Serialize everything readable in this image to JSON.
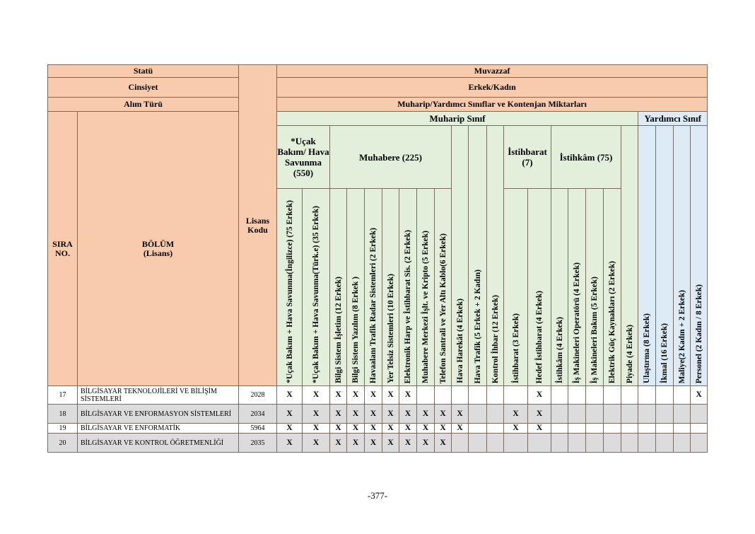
{
  "header": {
    "statu_label": "Statü",
    "statu_value": "Muvazzaf",
    "cinsiyet_label": "Cinsiyet",
    "cinsiyet_value": "Erkek/Kadın",
    "alim_label": "Alım Türü",
    "alim_value": "Muharip/Yardımcı Sınıflar ve Kontenjan Miktarları",
    "sira": "SIRA NO.",
    "bolum": "BÖLÜM (Lisans)",
    "lisans_kodu": "Lisans Kodu",
    "muharip": "Muharip Sınıf",
    "yardimci": "Yardımcı Sınıf",
    "groups": {
      "ucak": "*Uçak Bakım/ Hava Savunma (550)",
      "muhabere": "Muhabere (225)",
      "istihbarat": "İstihbarat (7)",
      "istihkam": "İstihkâm (75)"
    }
  },
  "columns": [
    "*Uçak Bakım + Hava Savunma(İngilizce) (75 Erkek)",
    "*Uçak Bakım + Hava Savunma(Türk.e) (35 Erkek)",
    "Bilgi Sistem İşletim (12 Erkek)",
    "Bilgi Sistem Yazılım (8 Erkek )",
    "Havaalanı Trafik Radar Sistemleri (2 Erkek)",
    "Yer Telsiz Sistemleri (10 Erkek)",
    "Elektronik Harp ve İstihbarat Sis. (2 Erkek)",
    "Muhabere Merkezi İşlt. ve Kripto (5 Erkek)",
    "Telefon Santrali ve Yer Altı Kablo(6 Erkek)",
    "Hava Harekât (4 Erkek)",
    "Hava Trafik (5 Erkek + 2 Kadın)",
    "Kontrol İhbar (12 Erkek)",
    "İstihbarat (3 Erkek)",
    "Hedef İstihbarat (4 Erkek)",
    "İstihkâm (4 Erkek)",
    "İş Makineleri Operatörü (4 Erkek)",
    "İş Makineleri Bakım (5 Erkek)",
    "Elektrik Güç Kaynakları (2 Erkek)",
    "Piyade (4 Erkek)",
    "Ulaştırma (8 Erkek)",
    "İkmal (16 Erkek)",
    "Maliye(2 Kadın + 2 Erkek)",
    "Personel (2 Kadın / 8 Erkek)"
  ],
  "rows": [
    {
      "sira": "17",
      "bolum": "BİLGİSAYAR TEKNOLOJİLERİ VE BİLİŞİM SİSTEMLERİ",
      "kod": "2028",
      "marks": [
        "X",
        "X",
        "X",
        "X",
        "X",
        "X",
        "X",
        "",
        "",
        "",
        "",
        "",
        "",
        "X",
        "",
        "",
        "",
        "",
        "",
        "",
        "",
        "",
        "X"
      ]
    },
    {
      "sira": "18",
      "bolum": "BİLGİSAYAR VE ENFORMASYON SİSTEMLERİ",
      "kod": "2034",
      "marks": [
        "X",
        "X",
        "X",
        "X",
        "X",
        "X",
        "X",
        "X",
        "X",
        "X",
        "",
        "",
        "X",
        "X",
        "",
        "",
        "",
        "",
        "",
        "",
        "",
        "",
        ""
      ]
    },
    {
      "sira": "19",
      "bolum": "BİLGİSAYAR VE ENFORMATİK",
      "kod": "5964",
      "marks": [
        "X",
        "X",
        "X",
        "X",
        "X",
        "X",
        "X",
        "X",
        "X",
        "X",
        "",
        "",
        "X",
        "X",
        "",
        "",
        "",
        "",
        "",
        "",
        "",
        "",
        ""
      ]
    },
    {
      "sira": "20",
      "bolum": "BİLGİSAYAR VE KONTROL ÖĞRETMENLİĞİ",
      "kod": "2035",
      "marks": [
        "X",
        "X",
        "X",
        "X",
        "X",
        "X",
        "X",
        "X",
        "X",
        "",
        "",
        "",
        "",
        "",
        "",
        "",
        "",
        "",
        "",
        "",
        "",
        "",
        ""
      ]
    }
  ],
  "footer": {
    "page_number": "-377-"
  },
  "colors": {
    "header_salmon": "#f8cbad",
    "muharip_green": "#e2efda",
    "yardimci_blue": "#ddebf7",
    "alt_row_gray": "#dcdcdc"
  }
}
